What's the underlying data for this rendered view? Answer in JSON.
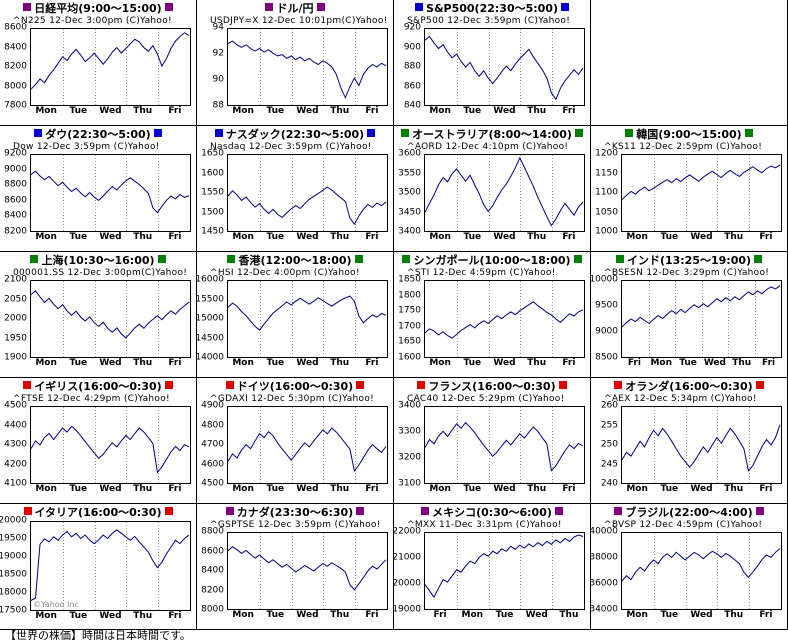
{
  "page": {
    "line_color": "#000080",
    "grid_color": "#999999",
    "footer_note": "【世界の株価】時間は日本時間です。"
  },
  "layout": {
    "columns": 4,
    "cells": [
      0,
      1,
      2,
      null,
      3,
      4,
      5,
      6,
      7,
      8,
      9,
      10,
      11,
      12,
      13,
      14,
      15,
      16,
      17,
      18
    ]
  },
  "chart_data": [
    {
      "name": "nikkei",
      "type": "line",
      "title": "日経平均(9:00～15:00)",
      "marker_color": "#800080",
      "ticker": "^N225 12-Dec 3:00pm (C)Yahoo!",
      "y_ticks": [
        8600,
        8400,
        8200,
        8000,
        7800
      ],
      "x_labels": [
        "Mon",
        "Tue",
        "Wed",
        "Thu",
        "Fri"
      ],
      "values": [
        7960,
        8010,
        8070,
        8030,
        8110,
        8170,
        8240,
        8310,
        8270,
        8340,
        8390,
        8330,
        8260,
        8300,
        8350,
        8290,
        8230,
        8290,
        8360,
        8410,
        8350,
        8400,
        8450,
        8500,
        8470,
        8410,
        8370,
        8430,
        8340,
        8210,
        8290,
        8400,
        8480,
        8530,
        8570,
        8540
      ]
    },
    {
      "name": "usd-jpy",
      "type": "line",
      "title": "ドル/円",
      "marker_color": "#800080",
      "ticker": "USDJPY=X 12-Dec 10:01pm(C)Yahoo!",
      "y_ticks": [
        94,
        92,
        90,
        88
      ],
      "x_labels": [
        "Mon",
        "Tue",
        "Wed",
        "Thu",
        "Fri"
      ],
      "values": [
        92.9,
        93.1,
        92.8,
        92.6,
        92.8,
        92.5,
        92.3,
        92.5,
        92.2,
        92.4,
        92.1,
        91.9,
        92.0,
        91.7,
        91.9,
        91.6,
        91.8,
        91.5,
        91.7,
        91.4,
        91.2,
        91.5,
        91.3,
        91.0,
        90.4,
        89.3,
        88.5,
        89.4,
        90.1,
        89.5,
        90.4,
        90.9,
        91.2,
        91.0,
        91.3,
        91.1
      ]
    },
    {
      "name": "sp500",
      "type": "line",
      "title": "S&P500(22:30～5:00)",
      "marker_color": "#0000cc",
      "ticker": "S&P500 12-Dec 3:59pm (C)Yahoo!",
      "y_ticks": [
        920,
        900,
        880,
        860,
        840
      ],
      "x_labels": [
        "Mon",
        "Tue",
        "Wed",
        "Thu",
        "Fri"
      ],
      "values": [
        909,
        913,
        906,
        900,
        904,
        896,
        890,
        894,
        886,
        880,
        885,
        876,
        870,
        876,
        868,
        862,
        868,
        875,
        881,
        876,
        883,
        889,
        894,
        899,
        891,
        884,
        877,
        868,
        852,
        845,
        857,
        865,
        871,
        877,
        872,
        879
      ]
    },
    {
      "name": "dow",
      "type": "line",
      "title": "ダウ(22:30～5:00)",
      "marker_color": "#0000cc",
      "ticker": "Dow 12-Dec 3:59pm (C)Yahoo!",
      "y_ticks": [
        9200,
        9000,
        8800,
        8600,
        8400,
        8200
      ],
      "x_labels": [
        "Mon",
        "Tue",
        "Wed",
        "Thu",
        "Fri"
      ],
      "values": [
        8950,
        8995,
        8930,
        8880,
        8925,
        8860,
        8800,
        8845,
        8780,
        8720,
        8765,
        8700,
        8650,
        8705,
        8645,
        8600,
        8660,
        8725,
        8785,
        8740,
        8805,
        8865,
        8905,
        8860,
        8815,
        8755,
        8695,
        8500,
        8435,
        8520,
        8600,
        8660,
        8620,
        8680,
        8640,
        8665
      ]
    },
    {
      "name": "nasdaq",
      "type": "line",
      "title": "ナスダック(22:30～5:00)",
      "marker_color": "#0000cc",
      "ticker": "Nasdaq 12-Dec 3:59pm (C)Yahoo!",
      "y_ticks": [
        1650,
        1600,
        1550,
        1500,
        1450
      ],
      "x_labels": [
        "Mon",
        "Tue",
        "Wed",
        "Thu",
        "Fri"
      ],
      "values": [
        1542,
        1556,
        1545,
        1530,
        1539,
        1524,
        1512,
        1521,
        1506,
        1495,
        1506,
        1492,
        1484,
        1496,
        1507,
        1516,
        1508,
        1521,
        1533,
        1541,
        1549,
        1557,
        1566,
        1558,
        1547,
        1537,
        1527,
        1482,
        1466,
        1488,
        1506,
        1519,
        1511,
        1523,
        1516,
        1526
      ]
    },
    {
      "name": "australia",
      "type": "line",
      "title": "オーストラリア(8:00～14:00)",
      "marker_color": "#008000",
      "ticker": "^AORD 12-Dec 4:10pm (C)Yahoo!",
      "y_ticks": [
        3600,
        3550,
        3500,
        3450,
        3400
      ],
      "x_labels": [
        "Mon",
        "Tue",
        "Wed",
        "Thu",
        "Fri"
      ],
      "values": [
        3448,
        3472,
        3495,
        3522,
        3542,
        3530,
        3552,
        3565,
        3548,
        3532,
        3548,
        3522,
        3498,
        3468,
        3450,
        3466,
        3488,
        3508,
        3524,
        3545,
        3568,
        3595,
        3570,
        3544,
        3518,
        3488,
        3462,
        3436,
        3412,
        3430,
        3452,
        3472,
        3456,
        3440,
        3462,
        3476
      ]
    },
    {
      "name": "korea",
      "type": "line",
      "title": "韓国(9:00～15:00)",
      "marker_color": "#008000",
      "ticker": "^KS11 12-Dec 2:59pm (C)Yahoo!",
      "y_ticks": [
        1200,
        1150,
        1100,
        1050,
        1000
      ],
      "x_labels": [
        "Mon",
        "Tue",
        "Wed",
        "Thu",
        "Fri"
      ],
      "values": [
        1082,
        1094,
        1104,
        1097,
        1108,
        1116,
        1106,
        1113,
        1121,
        1129,
        1136,
        1128,
        1139,
        1131,
        1141,
        1149,
        1140,
        1132,
        1143,
        1151,
        1159,
        1150,
        1142,
        1153,
        1161,
        1152,
        1145,
        1156,
        1163,
        1171,
        1162,
        1155,
        1166,
        1173,
        1168,
        1176
      ]
    },
    {
      "name": "shanghai",
      "type": "line",
      "title": "上海(10:30～16:00)",
      "marker_color": "#008000",
      "ticker": "000001.SS 12-Dec 3:00pm(C)Yahoo!",
      "y_ticks": [
        2100,
        2050,
        2000,
        1950,
        1900
      ],
      "x_labels": [
        "Mon",
        "Tue",
        "Wed",
        "Thu",
        "Fri"
      ],
      "values": [
        2066,
        2076,
        2060,
        2045,
        2056,
        2040,
        2028,
        2039,
        2022,
        2010,
        2021,
        2005,
        1995,
        2006,
        1990,
        1980,
        1991,
        1975,
        1964,
        1976,
        1960,
        1949,
        1962,
        1976,
        1986,
        1975,
        1989,
        1999,
        2009,
        1998,
        2011,
        2022,
        2013,
        2026,
        2036,
        2046
      ]
    },
    {
      "name": "hongkong",
      "type": "line",
      "title": "香港(12:00～18:00)",
      "marker_color": "#008000",
      "ticker": "^HSI 12-Dec 4:00pm (C)Yahoo!",
      "y_ticks": [
        16000,
        15500,
        15000,
        14500,
        14000
      ],
      "x_labels": [
        "Mon",
        "Tue",
        "Wed",
        "Thu",
        "Fri"
      ],
      "values": [
        15320,
        15430,
        15350,
        15200,
        15090,
        14940,
        14800,
        14700,
        14860,
        15010,
        15160,
        15260,
        15360,
        15460,
        15380,
        15480,
        15560,
        15480,
        15400,
        15480,
        15570,
        15500,
        15420,
        15350,
        15430,
        15510,
        15570,
        15620,
        15480,
        15080,
        14900,
        15010,
        15110,
        15050,
        15150,
        15100
      ]
    },
    {
      "name": "singapore",
      "type": "line",
      "title": "シンガポール(10:00～18:00)",
      "marker_color": "#008000",
      "ticker": "^STI 12-Dec 4:59pm (C)Yahoo!",
      "y_ticks": [
        1850,
        1800,
        1750,
        1700,
        1650,
        1600
      ],
      "x_labels": [
        "Mon",
        "Tue",
        "Wed",
        "Thu",
        "Fri"
      ],
      "values": [
        1678,
        1692,
        1684,
        1671,
        1682,
        1669,
        1660,
        1673,
        1686,
        1696,
        1706,
        1695,
        1709,
        1719,
        1710,
        1723,
        1736,
        1726,
        1739,
        1749,
        1740,
        1753,
        1763,
        1773,
        1783,
        1770,
        1759,
        1747,
        1739,
        1725,
        1714,
        1728,
        1743,
        1735,
        1749,
        1756
      ]
    },
    {
      "name": "india",
      "type": "line",
      "title": "インド(13:25～19:00)",
      "marker_color": "#008000",
      "ticker": "^BSESN 12-Dec 3:29pm (C)Yahoo!",
      "y_ticks": [
        10000,
        9500,
        9000,
        8500
      ],
      "x_labels": [
        "Fri",
        "Mon",
        "Tue",
        "Wed",
        "Thu",
        "Fri"
      ],
      "values": [
        9090,
        9180,
        9250,
        9200,
        9285,
        9220,
        9160,
        9245,
        9320,
        9260,
        9345,
        9420,
        9360,
        9445,
        9380,
        9465,
        9540,
        9480,
        9560,
        9500,
        9580,
        9660,
        9600,
        9680,
        9620,
        9700,
        9640,
        9725,
        9800,
        9740,
        9820,
        9760,
        9845,
        9900,
        9860,
        9925
      ]
    },
    {
      "name": "uk",
      "type": "line",
      "title": "イギリス(16:00～0:30)",
      "marker_color": "#dd0000",
      "ticker": "^FTSE 12-Dec 4:29pm (C)Yahoo!",
      "y_ticks": [
        4500,
        4400,
        4300,
        4200,
        4100
      ],
      "x_labels": [
        "Mon",
        "Tue",
        "Wed",
        "Thu",
        "Fri"
      ],
      "values": [
        4280,
        4322,
        4300,
        4341,
        4362,
        4330,
        4361,
        4392,
        4370,
        4401,
        4380,
        4350,
        4318,
        4288,
        4258,
        4228,
        4250,
        4282,
        4312,
        4290,
        4322,
        4352,
        4330,
        4362,
        4392,
        4370,
        4340,
        4308,
        4152,
        4182,
        4222,
        4262,
        4292,
        4270,
        4302,
        4290
      ]
    },
    {
      "name": "germany",
      "type": "line",
      "title": "ドイツ(16:00～0:30)",
      "marker_color": "#dd0000",
      "ticker": "^GDAXI 12-Dec 5:30pm (C)Yahoo!",
      "y_ticks": [
        4900,
        4800,
        4700,
        4600,
        4500
      ],
      "x_labels": [
        "Mon",
        "Tue",
        "Wed",
        "Thu",
        "Fri"
      ],
      "values": [
        4612,
        4652,
        4630,
        4672,
        4702,
        4680,
        4722,
        4762,
        4740,
        4772,
        4750,
        4710,
        4678,
        4648,
        4618,
        4650,
        4682,
        4712,
        4690,
        4722,
        4752,
        4782,
        4760,
        4792,
        4770,
        4740,
        4708,
        4678,
        4560,
        4592,
        4632,
        4672,
        4702,
        4680,
        4660,
        4692
      ]
    },
    {
      "name": "france",
      "type": "line",
      "title": "フランス(16:00～0:30)",
      "marker_color": "#dd0000",
      "ticker": "CAC40 12-Dec 5:29pm (C)Yahoo!",
      "y_ticks": [
        3400,
        3300,
        3200,
        3100
      ],
      "x_labels": [
        "Mon",
        "Tue",
        "Wed",
        "Thu",
        "Fri"
      ],
      "values": [
        3240,
        3272,
        3255,
        3286,
        3306,
        3285,
        3311,
        3336,
        3318,
        3341,
        3322,
        3300,
        3274,
        3249,
        3227,
        3204,
        3222,
        3246,
        3269,
        3250,
        3273,
        3296,
        3278,
        3301,
        3323,
        3305,
        3279,
        3254,
        3146,
        3166,
        3196,
        3226,
        3251,
        3236,
        3256,
        3246
      ]
    },
    {
      "name": "netherlands",
      "type": "line",
      "title": "オランダ(16:00～0:30)",
      "marker_color": "#dd0000",
      "ticker": "^AEX 12-Dec 5:34pm (C)Yahoo!",
      "y_ticks": [
        260,
        255,
        250,
        245,
        240
      ],
      "x_labels": [
        "Mon",
        "Tue",
        "Wed",
        "Thu",
        "Fri"
      ],
      "values": [
        246,
        248,
        247,
        249,
        251,
        249.5,
        252,
        254,
        252.5,
        254.5,
        253,
        251,
        249,
        247,
        245.5,
        244,
        245.5,
        247.5,
        249.5,
        248,
        250,
        252,
        250.5,
        252.5,
        254.5,
        253,
        251,
        249,
        243,
        244.5,
        247,
        249.5,
        251.5,
        250,
        252,
        255.5
      ]
    },
    {
      "name": "italy",
      "type": "line",
      "title": "イタリア(16:00～0:30)",
      "marker_color": "#dd0000",
      "ticker": null,
      "watermark": "©Yahoo Inc",
      "y_ticks": [
        20000,
        19500,
        19000,
        18500,
        18000,
        17500
      ],
      "x_labels": [
        "Mon",
        "Tue",
        "Wed",
        "Thu",
        "Fri"
      ],
      "values": [
        17750,
        17820,
        19380,
        19540,
        19450,
        19600,
        19500,
        19650,
        19750,
        19600,
        19700,
        19550,
        19650,
        19500,
        19400,
        19510,
        19650,
        19550,
        19700,
        19800,
        19700,
        19600,
        19500,
        19610,
        19450,
        19300,
        19150,
        18900,
        18700,
        18860,
        19100,
        19300,
        19500,
        19400,
        19550,
        19650
      ]
    },
    {
      "name": "canada",
      "type": "line",
      "title": "カナダ(23:30～6:30)",
      "marker_color": "#800080",
      "ticker": "^GSPTSE 12-Dec 3:59pm (C)Yahoo!",
      "y_ticks": [
        8800,
        8600,
        8400,
        8200,
        8000
      ],
      "x_labels": [
        "Mon",
        "Tue",
        "Wed",
        "Thu",
        "Fri"
      ],
      "values": [
        8620,
        8662,
        8630,
        8590,
        8622,
        8580,
        8540,
        8572,
        8530,
        8490,
        8522,
        8480,
        8440,
        8472,
        8430,
        8390,
        8422,
        8460,
        8430,
        8400,
        8442,
        8480,
        8450,
        8490,
        8460,
        8428,
        8388,
        8250,
        8198,
        8262,
        8330,
        8400,
        8452,
        8420,
        8472,
        8522
      ]
    },
    {
      "name": "mexico",
      "type": "line",
      "title": "メキシコ(0:30～6:00)",
      "marker_color": "#800080",
      "ticker": "^MXX 11-Dec 3:31pm (C)Yahoo!",
      "y_ticks": [
        22000,
        21000,
        20000,
        19000
      ],
      "x_labels": [
        "Fri",
        "Mon",
        "Tue",
        "Wed",
        "Thu"
      ],
      "values": [
        19950,
        19700,
        19440,
        19800,
        20150,
        20050,
        20300,
        20550,
        20450,
        20700,
        20900,
        20800,
        21050,
        21200,
        21100,
        21300,
        21200,
        21400,
        21300,
        21500,
        21380,
        21550,
        21430,
        21600,
        21480,
        21650,
        21530,
        21700,
        21580,
        21760,
        21640,
        21820,
        21700,
        21880,
        21960,
        21900
      ]
    },
    {
      "name": "brazil",
      "type": "line",
      "title": "ブラジル(22:00～4:00)",
      "marker_color": "#800080",
      "ticker": "^BVSP 12-Dec 4:59pm (C)Yahoo!",
      "y_ticks": [
        40000,
        38000,
        36000,
        34000
      ],
      "x_labels": [
        "Mon",
        "Tue",
        "Wed",
        "Thu",
        "Fri"
      ],
      "values": [
        36200,
        36620,
        36300,
        36900,
        37300,
        37000,
        37520,
        37900,
        37600,
        38120,
        38400,
        38100,
        38520,
        38200,
        37900,
        38220,
        38500,
        38300,
        38000,
        38320,
        38600,
        38400,
        38100,
        38420,
        38200,
        37900,
        37600,
        36900,
        36480,
        36920,
        37400,
        37920,
        38300,
        38100,
        38520,
        38820
      ]
    }
  ]
}
